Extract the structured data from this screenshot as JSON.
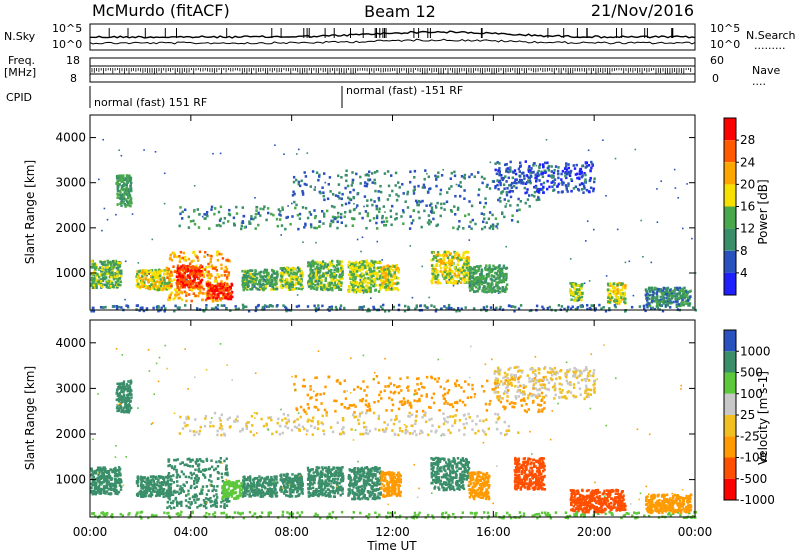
{
  "header": {
    "station": "McMurdo (fitACF)",
    "beam": "Beam 12",
    "date": "21/Nov/2016"
  },
  "summary": {
    "left_labels": {
      "nsky": "N.Sky",
      "freq": "Freq.",
      "freq_unit": "[MHz]",
      "cpid": "CPID"
    },
    "right_labels": {
      "nsearch": "N.Search",
      "nave": "Nave",
      "nsearch_dots": "·········",
      "nave_dots": "····"
    },
    "noise_ticks": {
      "top": "10^5",
      "bottom": "10^0"
    },
    "freq_ticks": {
      "top": "18",
      "bottom": "8"
    },
    "nave_ticks": {
      "top": "60",
      "bottom": "0"
    },
    "cpid_segments": [
      {
        "label": "normal (fast) 151 RF",
        "start_hour": 0.0
      },
      {
        "label": "normal (fast) -151 RF",
        "start_hour": 10.0
      }
    ]
  },
  "colors": {
    "frame": "#000000",
    "power_scale": [
      "#2020ff",
      "#2a52be",
      "#3a8f6a",
      "#49a94a",
      "#f5e000",
      "#ffa500",
      "#ff5a00",
      "#ff0000"
    ],
    "velocity_scale": [
      "#ff0000",
      "#ff4f00",
      "#ff9a00",
      "#f0c020",
      "#c8c8c8",
      "#5ec83c",
      "#3a8f6a",
      "#2a52be"
    ]
  },
  "chart_data": [
    {
      "type": "heatmap",
      "panel": "power",
      "ylabel": "Slant Range [km]",
      "xlabel": "",
      "xlim": [
        0,
        24
      ],
      "ylim": [
        180,
        4500
      ],
      "y_ticks": [
        "1000",
        "2000",
        "3000",
        "4000"
      ],
      "x_ticks": [
        "00:00",
        "04:00",
        "08:00",
        "12:00",
        "16:00",
        "20:00",
        "00:00"
      ],
      "colorbar": {
        "label": "Power [dB]",
        "ticks": [
          "4",
          "8",
          "12",
          "16",
          "20",
          "24",
          "28"
        ],
        "range": [
          0,
          30
        ]
      },
      "features": [
        {
          "t0": 0.0,
          "t1": 24.0,
          "r0": 180,
          "r1": 320,
          "level": 8
        },
        {
          "t0": 0.0,
          "t1": 1.2,
          "r0": 700,
          "r1": 1300,
          "level": 14
        },
        {
          "t0": 1.0,
          "t1": 1.6,
          "r0": 2500,
          "r1": 3200,
          "level": 12
        },
        {
          "t0": 1.8,
          "t1": 3.2,
          "r0": 650,
          "r1": 1100,
          "level": 18
        },
        {
          "t0": 3.0,
          "t1": 5.5,
          "r0": 400,
          "r1": 1500,
          "level": 22
        },
        {
          "t0": 3.4,
          "t1": 4.4,
          "r0": 700,
          "r1": 1200,
          "level": 28
        },
        {
          "t0": 4.6,
          "t1": 5.6,
          "r0": 450,
          "r1": 800,
          "level": 28
        },
        {
          "t0": 6.0,
          "t1": 7.4,
          "r0": 650,
          "r1": 1100,
          "level": 13
        },
        {
          "t0": 7.5,
          "t1": 8.4,
          "r0": 650,
          "r1": 1150,
          "level": 15
        },
        {
          "t0": 8.6,
          "t1": 10.0,
          "r0": 650,
          "r1": 1300,
          "level": 14
        },
        {
          "t0": 10.2,
          "t1": 11.5,
          "r0": 600,
          "r1": 1300,
          "level": 16
        },
        {
          "t0": 11.5,
          "t1": 12.2,
          "r0": 650,
          "r1": 1200,
          "level": 18
        },
        {
          "t0": 13.5,
          "t1": 15.0,
          "r0": 800,
          "r1": 1500,
          "level": 18
        },
        {
          "t0": 15.0,
          "t1": 16.5,
          "r0": 600,
          "r1": 1200,
          "level": 12
        },
        {
          "t0": 3.5,
          "t1": 17.0,
          "r0": 2000,
          "r1": 2500,
          "level": 10
        },
        {
          "t0": 8.0,
          "t1": 18.0,
          "r0": 2500,
          "r1": 3300,
          "level": 8
        },
        {
          "t0": 16.0,
          "t1": 20.0,
          "r0": 2800,
          "r1": 3500,
          "level": 6
        },
        {
          "t0": 19.0,
          "t1": 19.5,
          "r0": 400,
          "r1": 800,
          "level": 16
        },
        {
          "t0": 20.5,
          "t1": 21.2,
          "r0": 350,
          "r1": 800,
          "level": 18
        },
        {
          "t0": 22.0,
          "t1": 23.8,
          "r0": 300,
          "r1": 700,
          "level": 10
        }
      ]
    },
    {
      "type": "heatmap",
      "panel": "velocity",
      "ylabel": "Slant Range [km]",
      "xlabel": "Time UT",
      "xlim": [
        0,
        24
      ],
      "ylim": [
        180,
        4500
      ],
      "y_ticks": [
        "1000",
        "2000",
        "3000",
        "4000"
      ],
      "x_ticks": [
        "00:00",
        "04:00",
        "08:00",
        "12:00",
        "16:00",
        "20:00",
        "00:00"
      ],
      "colorbar": {
        "label": "Velocity [m s-1]",
        "ticks": [
          "1000",
          "500",
          "100",
          "25",
          "-25",
          "-100",
          "-500",
          "-1000"
        ]
      },
      "features": [
        {
          "t0": 0.0,
          "t1": 24.0,
          "r0": 180,
          "r1": 320,
          "vel": 50
        },
        {
          "t0": 0.0,
          "t1": 1.2,
          "r0": 700,
          "r1": 1300,
          "vel": 300
        },
        {
          "t0": 1.0,
          "t1": 1.6,
          "r0": 2500,
          "r1": 3200,
          "vel": 300
        },
        {
          "t0": 1.8,
          "t1": 3.2,
          "r0": 650,
          "r1": 1100,
          "vel": 300
        },
        {
          "t0": 3.0,
          "t1": 5.5,
          "r0": 400,
          "r1": 1500,
          "vel": 300
        },
        {
          "t0": 5.2,
          "t1": 6.0,
          "r0": 600,
          "r1": 1000,
          "vel": 60
        },
        {
          "t0": 6.0,
          "t1": 7.4,
          "r0": 650,
          "r1": 1100,
          "vel": 300
        },
        {
          "t0": 7.5,
          "t1": 8.4,
          "r0": 650,
          "r1": 1150,
          "vel": 300
        },
        {
          "t0": 8.6,
          "t1": 10.0,
          "r0": 650,
          "r1": 1300,
          "vel": 300
        },
        {
          "t0": 10.2,
          "t1": 11.5,
          "r0": 600,
          "r1": 1300,
          "vel": 300
        },
        {
          "t0": 11.5,
          "t1": 12.3,
          "r0": 650,
          "r1": 1200,
          "vel": -60
        },
        {
          "t0": 13.5,
          "t1": 15.0,
          "r0": 800,
          "r1": 1500,
          "vel": 300
        },
        {
          "t0": 15.0,
          "t1": 15.8,
          "r0": 600,
          "r1": 1200,
          "vel": -60
        },
        {
          "t0": 3.5,
          "t1": 17.0,
          "r0": 2000,
          "r1": 2500,
          "vel": 0
        },
        {
          "t0": 8.0,
          "t1": 18.0,
          "r0": 2500,
          "r1": 3300,
          "vel": -60
        },
        {
          "t0": 16.0,
          "t1": 20.0,
          "r0": 2800,
          "r1": 3500,
          "vel": 0
        },
        {
          "t0": 16.8,
          "t1": 18.0,
          "r0": 800,
          "r1": 1500,
          "vel": -300
        },
        {
          "t0": 19.0,
          "t1": 20.5,
          "r0": 300,
          "r1": 800,
          "vel": -300
        },
        {
          "t0": 20.5,
          "t1": 21.2,
          "r0": 350,
          "r1": 800,
          "vel": -300
        },
        {
          "t0": 22.0,
          "t1": 23.8,
          "r0": 300,
          "r1": 700,
          "vel": -60
        }
      ]
    }
  ]
}
